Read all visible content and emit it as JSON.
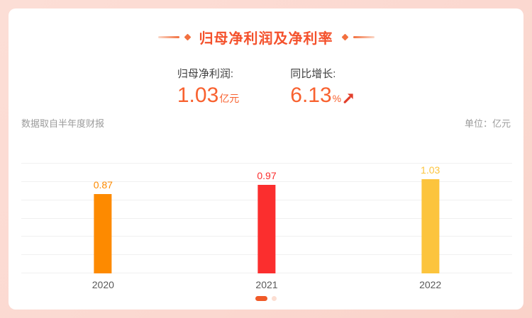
{
  "header": {
    "title": "归母净利润及净利率"
  },
  "stats": [
    {
      "label": "归母净利润:",
      "value": "1.03",
      "unit": "亿元"
    },
    {
      "label": "同比增长:",
      "value": "6.13",
      "unit": "%",
      "trend": "up"
    }
  ],
  "meta": {
    "source_note": "数据取自半年度财报",
    "unit_label": "单位：亿元"
  },
  "chart_data": {
    "type": "bar",
    "title": "归母净利润及净利率",
    "categories": [
      "2020",
      "2021",
      "2022"
    ],
    "values": [
      0.87,
      0.97,
      1.03
    ],
    "value_labels": [
      "0.87",
      "0.97",
      "1.03"
    ],
    "bar_colors": [
      "#fd8a00",
      "#fb2e2e",
      "#fcc43d"
    ],
    "ylim": [
      0,
      1.2
    ],
    "grid_step": 0.2,
    "grid": true,
    "legend": "none",
    "unit": "亿元",
    "xlabel": "",
    "ylabel": ""
  },
  "pagination": {
    "dots": [
      {
        "active": true
      },
      {
        "active": false
      }
    ]
  },
  "colors": {
    "page_bg": "#fbd8d0",
    "card_bg": "#ffffff",
    "title": "#f4512c",
    "stat_value": "#f8612f",
    "stat_label": "#404040",
    "meta_text": "#9b9b9b",
    "gridline": "#f0f0f0",
    "axis_label": "#595959",
    "trend_arrow": "#e23e2b",
    "pagination_active": "#f05a28",
    "pagination_inactive": "#fcded2"
  }
}
